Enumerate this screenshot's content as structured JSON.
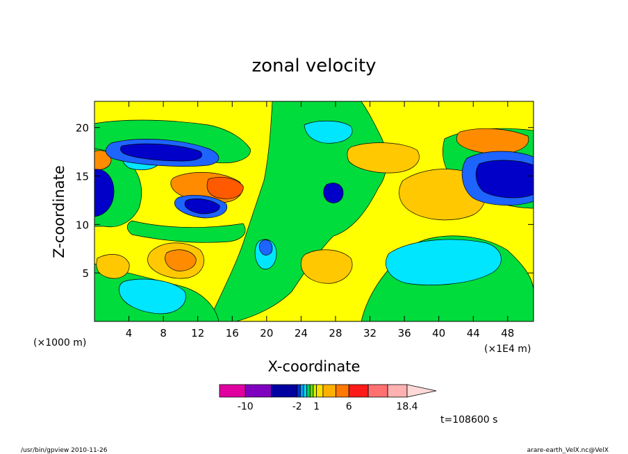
{
  "chart_data": {
    "type": "heatmap",
    "title": "zonal velocity",
    "xlabel": "X-coordinate",
    "ylabel": "Z-coordinate",
    "x_unit_left": "(×1000 m)",
    "x_unit_right": "(×1E4 m)",
    "x_ticks": [
      "4",
      "8",
      "12",
      "16",
      "20",
      "24",
      "28",
      "32",
      "36",
      "40",
      "44",
      "48"
    ],
    "x_tick_values": [
      4,
      8,
      12,
      16,
      20,
      24,
      28,
      32,
      36,
      40,
      44,
      48
    ],
    "y_ticks": [
      "5",
      "10",
      "15",
      "20"
    ],
    "y_tick_values": [
      5,
      10,
      15,
      20
    ],
    "xlim": [
      0,
      51
    ],
    "ylim": [
      0,
      22.7
    ],
    "colorbar": {
      "levels": [
        -14,
        -10,
        -6,
        -2,
        -1.5,
        -1,
        -0.5,
        0,
        0.5,
        1,
        2,
        4,
        6,
        9,
        12,
        15,
        18.4
      ],
      "colors": [
        "#e000a0",
        "#8000c0",
        "#0000a0",
        "#0030d0",
        "#00a0ff",
        "#00d8f0",
        "#00d060",
        "#60e000",
        "#e0f000",
        "#ffe000",
        "#ffb000",
        "#ff7800",
        "#ff1a1a",
        "#ff7070",
        "#ffb0b0",
        "#ffd8d8"
      ],
      "tick_labels": [
        "-10",
        "-2",
        "1",
        "6",
        "18.4"
      ],
      "tick_values": [
        -10,
        -2,
        1,
        6,
        18.4
      ]
    },
    "annotation_time": "t=108600 s",
    "color_key": {
      "dark_blue": "#0000c8",
      "blue": "#1e64ff",
      "cyan": "#00e6ff",
      "green": "#00dc3c",
      "yellow": "#ffff00",
      "light_orange": "#ffc800",
      "orange": "#ff8c00",
      "deep_orange": "#ff5a00"
    }
  },
  "footer": {
    "left": "/usr/bin/gpview  2010-11-26",
    "right": "arare-earth_VelX.nc@VelX"
  }
}
